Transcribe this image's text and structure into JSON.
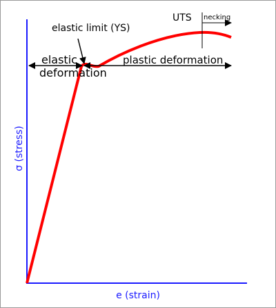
{
  "axes": {
    "y_label": "σ (stress)",
    "x_label": "e (strain)"
  },
  "annotations": {
    "elastic_limit": "elastic limit (YS)",
    "elastic_1": "elastic",
    "elastic_2": "deformation",
    "plastic": "plastic deformation",
    "uts": "UTS",
    "necking": "necking"
  }
}
